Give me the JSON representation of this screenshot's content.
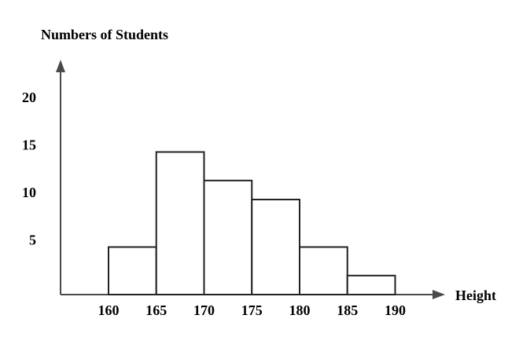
{
  "chart_data": {
    "type": "bar",
    "ylabel": "Numbers of Students",
    "xlabel": "Height",
    "x_ticks": [
      "160",
      "165",
      "170",
      "175",
      "180",
      "185",
      "190"
    ],
    "y_ticks": [
      "5",
      "10",
      "15",
      "20"
    ],
    "bins": [
      {
        "from": 160,
        "to": 165,
        "value": 5
      },
      {
        "from": 165,
        "to": 170,
        "value": 15
      },
      {
        "from": 170,
        "to": 175,
        "value": 12
      },
      {
        "from": 175,
        "to": 180,
        "value": 10
      },
      {
        "from": 180,
        "to": 185,
        "value": 5
      },
      {
        "from": 185,
        "to": 190,
        "value": 2
      }
    ],
    "xlim": [
      155,
      193
    ],
    "ylim": [
      0,
      23
    ],
    "grid": false,
    "colors": {
      "axis": "#4a4a4a",
      "bar_stroke": "#222222",
      "bar_fill": "#ffffff"
    }
  }
}
